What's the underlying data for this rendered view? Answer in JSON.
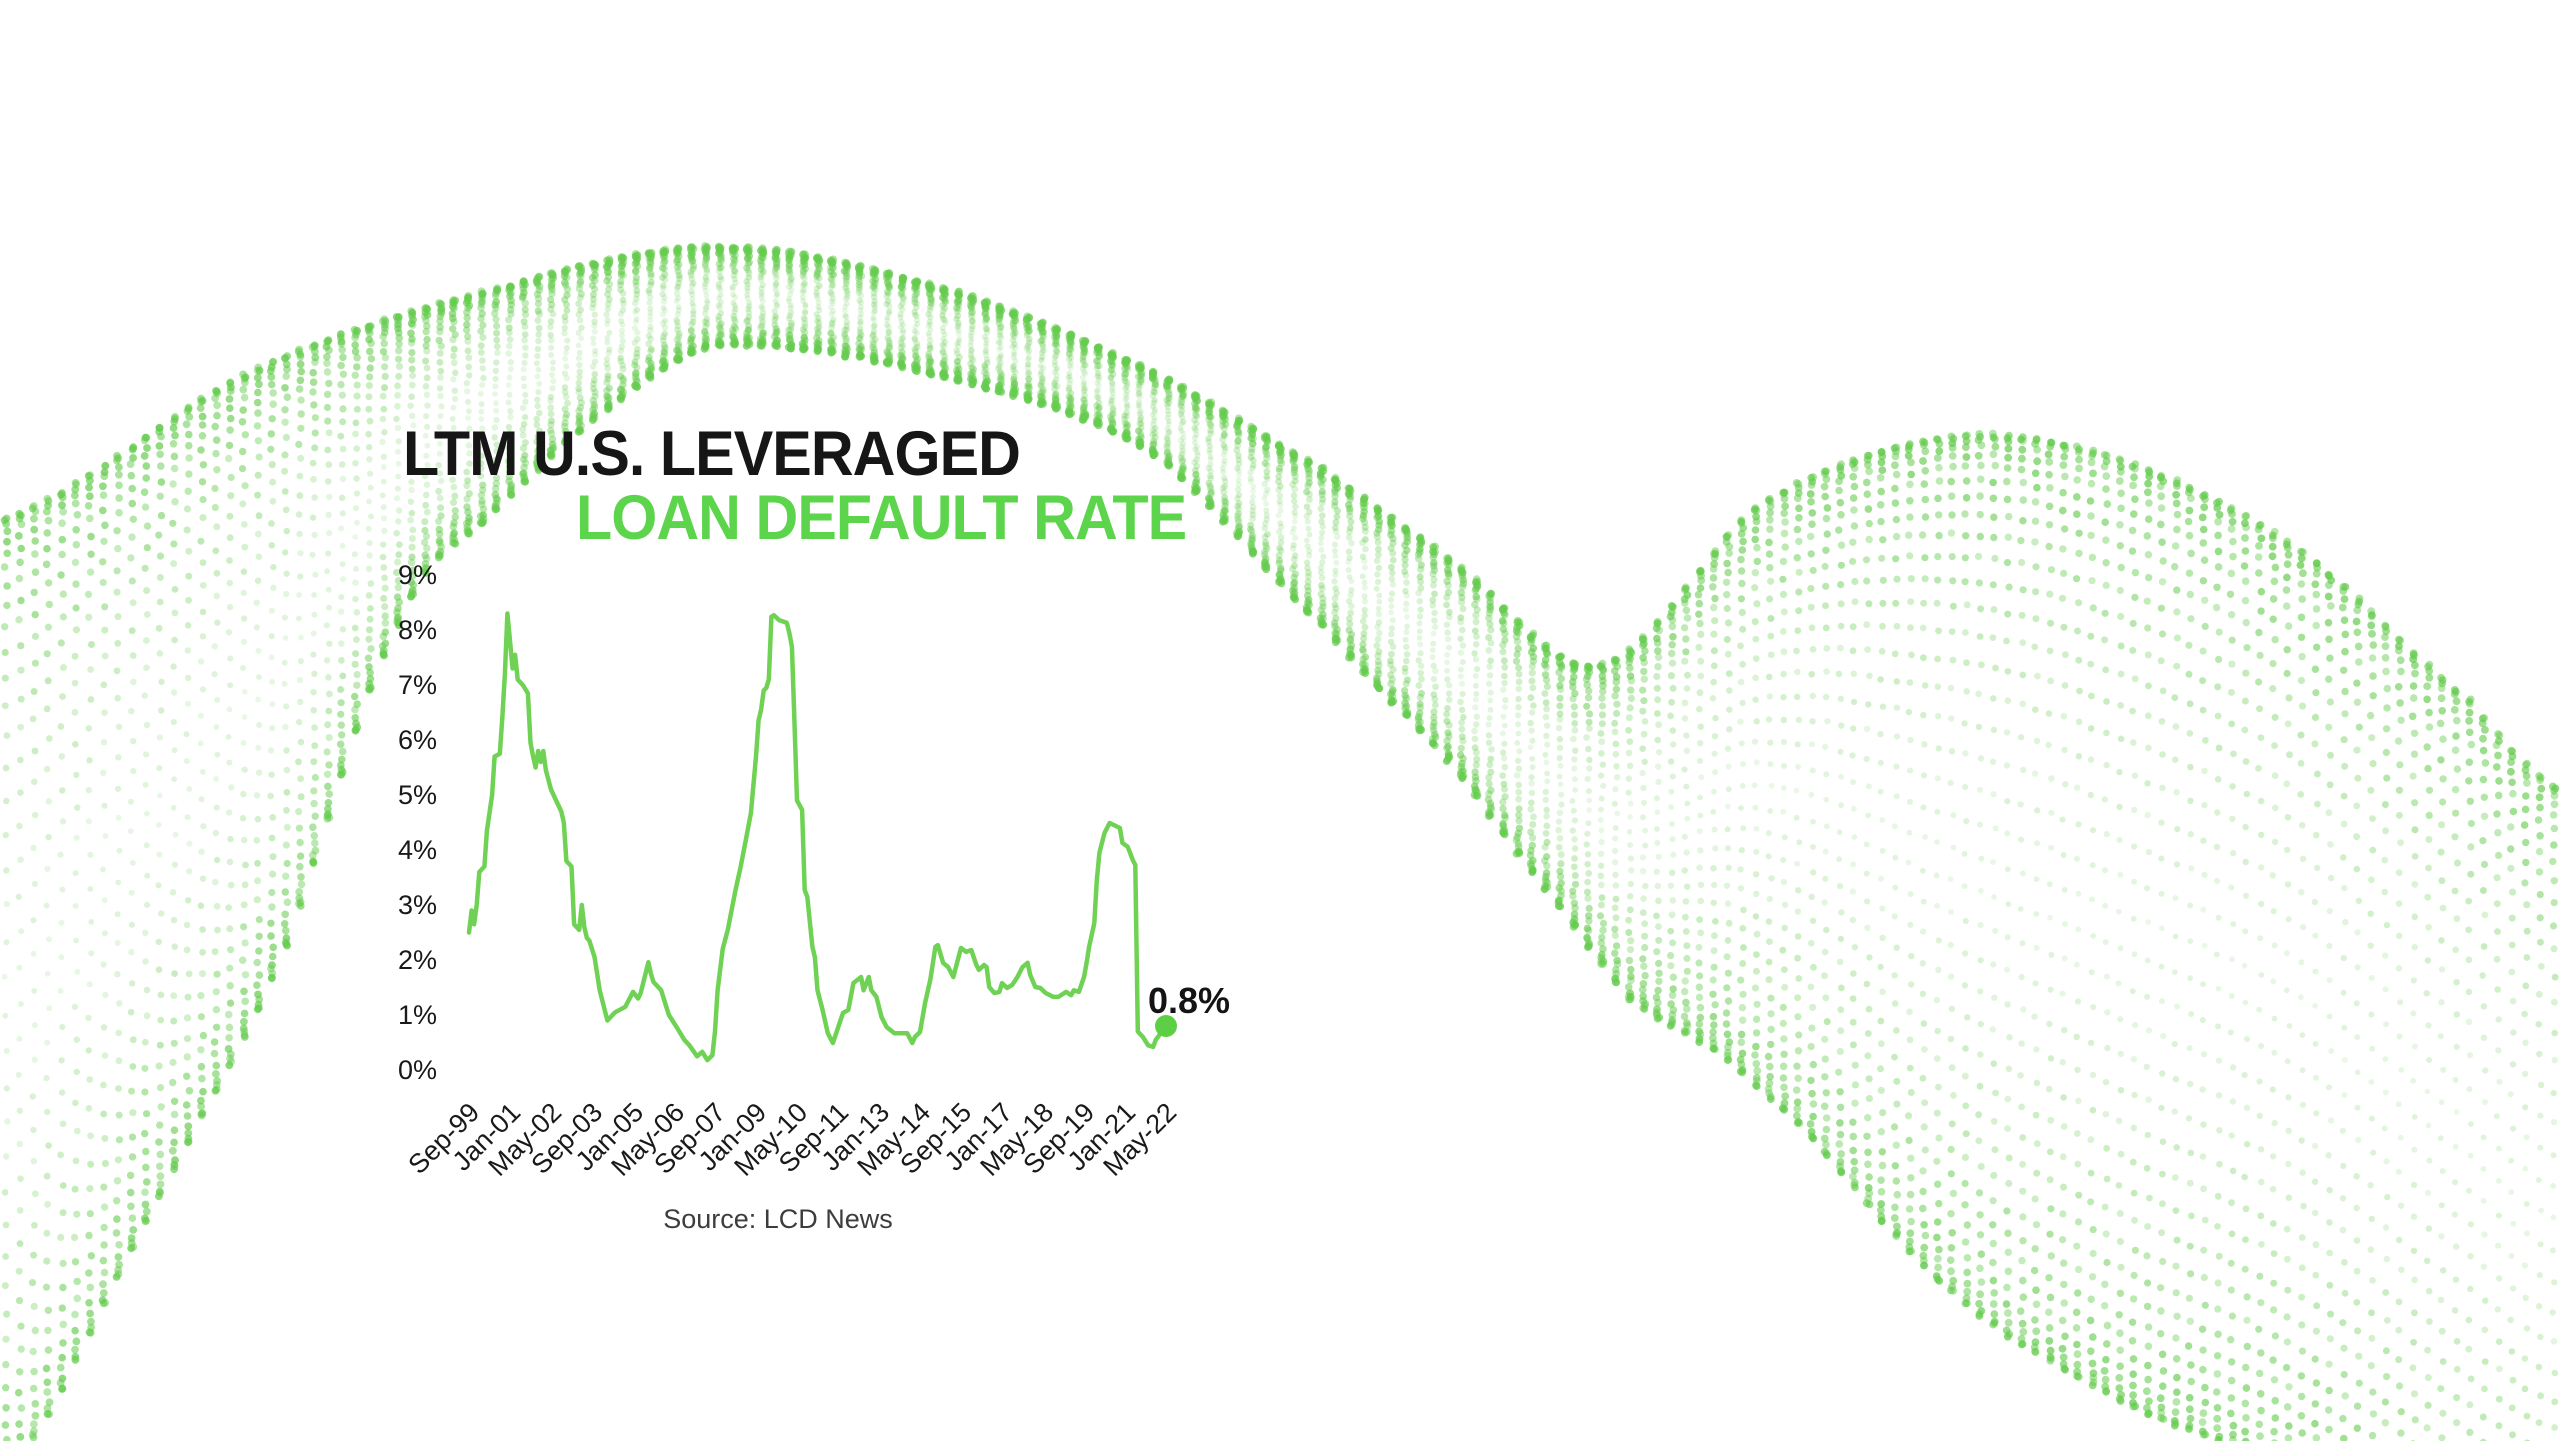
{
  "page": {
    "background_color": "#ffffff"
  },
  "title": {
    "line1": "LTM U.S. LEVERAGED",
    "line2": "LOAN DEFAULT RATE",
    "line1_color": "#161616",
    "line2_color": "#5cd44b"
  },
  "source": {
    "text": "Source: LCD News"
  },
  "annotation": {
    "end_label": "0.8%"
  },
  "colors": {
    "accent_green": "#5cd44b",
    "line_green": "#70d254",
    "marker_green": "#5ccf44",
    "dot_wave_green": "#66cc4f",
    "text_black": "#191919",
    "source_gray": "#3d3d3d"
  },
  "chart_data": {
    "type": "line",
    "title": "LTM U.S. Leveraged Loan Default Rate",
    "xlabel": "",
    "ylabel": "",
    "ylim": [
      0,
      9
    ],
    "y_tick_labels": [
      "0%",
      "1%",
      "2%",
      "3%",
      "4%",
      "5%",
      "6%",
      "7%",
      "8%",
      "9%"
    ],
    "x_tick_labels": [
      "Sep-99",
      "Jan-01",
      "May-02",
      "Sep-03",
      "Jan-05",
      "May-06",
      "Sep-07",
      "Jan-09",
      "May-10",
      "Sep-11",
      "Jan-13",
      "May-14",
      "Sep-15",
      "Jan-17",
      "May-18",
      "Sep-19",
      "Jan-21",
      "May-22"
    ],
    "x_tick_interval_months": 16,
    "x_unit": "months since Sep-1999",
    "grid": false,
    "legend": "none",
    "end_point": {
      "x": "May-22",
      "value": 0.8,
      "label": "0.8%"
    },
    "series": [
      {
        "name": "LTM U.S. leveraged loan default rate (%)",
        "points": [
          [
            0,
            2.5
          ],
          [
            1,
            2.9
          ],
          [
            2,
            2.65
          ],
          [
            3,
            3.0
          ],
          [
            4,
            3.6
          ],
          [
            6,
            3.7
          ],
          [
            7,
            4.35
          ],
          [
            9,
            5.0
          ],
          [
            10,
            5.7
          ],
          [
            12,
            5.75
          ],
          [
            13,
            6.4
          ],
          [
            14,
            7.2
          ],
          [
            15,
            8.3
          ],
          [
            16,
            7.8
          ],
          [
            17,
            7.3
          ],
          [
            18,
            7.55
          ],
          [
            19,
            7.1
          ],
          [
            21,
            7.0
          ],
          [
            23,
            6.85
          ],
          [
            24,
            5.95
          ],
          [
            25,
            5.7
          ],
          [
            26,
            5.5
          ],
          [
            27,
            5.8
          ],
          [
            28,
            5.6
          ],
          [
            29,
            5.8
          ],
          [
            30,
            5.45
          ],
          [
            32,
            5.1
          ],
          [
            34,
            4.9
          ],
          [
            36,
            4.7
          ],
          [
            37,
            4.5
          ],
          [
            38,
            3.8
          ],
          [
            40,
            3.7
          ],
          [
            41,
            2.65
          ],
          [
            43,
            2.55
          ],
          [
            44,
            3.0
          ],
          [
            45,
            2.6
          ],
          [
            46,
            2.4
          ],
          [
            47,
            2.35
          ],
          [
            49,
            2.05
          ],
          [
            51,
            1.45
          ],
          [
            54,
            0.9
          ],
          [
            57,
            1.05
          ],
          [
            61,
            1.15
          ],
          [
            64,
            1.42
          ],
          [
            66,
            1.3
          ],
          [
            67,
            1.4
          ],
          [
            70,
            1.96
          ],
          [
            71,
            1.75
          ],
          [
            72,
            1.6
          ],
          [
            75,
            1.45
          ],
          [
            77,
            1.15
          ],
          [
            78,
            1.0
          ],
          [
            81,
            0.78
          ],
          [
            84,
            0.55
          ],
          [
            86,
            0.45
          ],
          [
            89,
            0.25
          ],
          [
            91,
            0.33
          ],
          [
            93,
            0.18
          ],
          [
            95,
            0.27
          ],
          [
            96,
            0.7
          ],
          [
            97,
            1.45
          ],
          [
            99,
            2.2
          ],
          [
            101,
            2.55
          ],
          [
            104,
            3.27
          ],
          [
            106,
            3.69
          ],
          [
            108,
            4.18
          ],
          [
            110,
            4.67
          ],
          [
            112,
            5.7
          ],
          [
            113,
            6.36
          ],
          [
            114,
            6.55
          ],
          [
            115,
            6.9
          ],
          [
            116,
            6.95
          ],
          [
            117,
            7.1
          ],
          [
            118,
            8.24
          ],
          [
            119,
            8.27
          ],
          [
            121,
            8.18
          ],
          [
            124,
            8.13
          ],
          [
            125,
            7.95
          ],
          [
            126,
            7.7
          ],
          [
            127,
            6.36
          ],
          [
            128,
            4.9
          ],
          [
            130,
            4.73
          ],
          [
            131,
            3.27
          ],
          [
            132,
            3.15
          ],
          [
            134,
            2.24
          ],
          [
            135,
            2.05
          ],
          [
            136,
            1.45
          ],
          [
            138,
            1.09
          ],
          [
            140,
            0.67
          ],
          [
            142,
            0.49
          ],
          [
            145,
            0.91
          ],
          [
            146,
            1.04
          ],
          [
            148,
            1.09
          ],
          [
            150,
            1.58
          ],
          [
            153,
            1.69
          ],
          [
            154,
            1.45
          ],
          [
            156,
            1.69
          ],
          [
            157,
            1.45
          ],
          [
            159,
            1.33
          ],
          [
            161,
            0.96
          ],
          [
            163,
            0.78
          ],
          [
            166,
            0.67
          ],
          [
            171,
            0.67
          ],
          [
            173,
            0.49
          ],
          [
            174,
            0.6
          ],
          [
            176,
            0.69
          ],
          [
            178,
            1.22
          ],
          [
            180,
            1.64
          ],
          [
            182,
            2.24
          ],
          [
            183,
            2.27
          ],
          [
            185,
            1.95
          ],
          [
            187,
            1.87
          ],
          [
            189,
            1.69
          ],
          [
            192,
            2.22
          ],
          [
            194,
            2.15
          ],
          [
            196,
            2.18
          ],
          [
            198,
            1.91
          ],
          [
            199,
            1.82
          ],
          [
            201,
            1.91
          ],
          [
            202,
            1.87
          ],
          [
            203,
            1.51
          ],
          [
            205,
            1.4
          ],
          [
            207,
            1.42
          ],
          [
            208,
            1.58
          ],
          [
            210,
            1.49
          ],
          [
            212,
            1.55
          ],
          [
            214,
            1.69
          ],
          [
            216,
            1.87
          ],
          [
            218,
            1.95
          ],
          [
            219,
            1.73
          ],
          [
            221,
            1.51
          ],
          [
            223,
            1.49
          ],
          [
            225,
            1.4
          ],
          [
            228,
            1.33
          ],
          [
            230,
            1.33
          ],
          [
            233,
            1.42
          ],
          [
            235,
            1.36
          ],
          [
            236,
            1.45
          ],
          [
            238,
            1.42
          ],
          [
            240,
            1.69
          ],
          [
            241,
            1.95
          ],
          [
            242,
            2.24
          ],
          [
            244,
            2.67
          ],
          [
            245,
            3.45
          ],
          [
            246,
            3.95
          ],
          [
            248,
            4.31
          ],
          [
            250,
            4.49
          ],
          [
            254,
            4.4
          ],
          [
            255,
            4.13
          ],
          [
            257,
            4.06
          ],
          [
            258,
            3.95
          ],
          [
            259,
            3.82
          ],
          [
            260,
            3.73
          ],
          [
            261,
            0.7
          ],
          [
            263,
            0.6
          ],
          [
            265,
            0.45
          ],
          [
            267,
            0.42
          ],
          [
            268,
            0.55
          ],
          [
            272,
            0.8
          ]
        ]
      }
    ]
  }
}
